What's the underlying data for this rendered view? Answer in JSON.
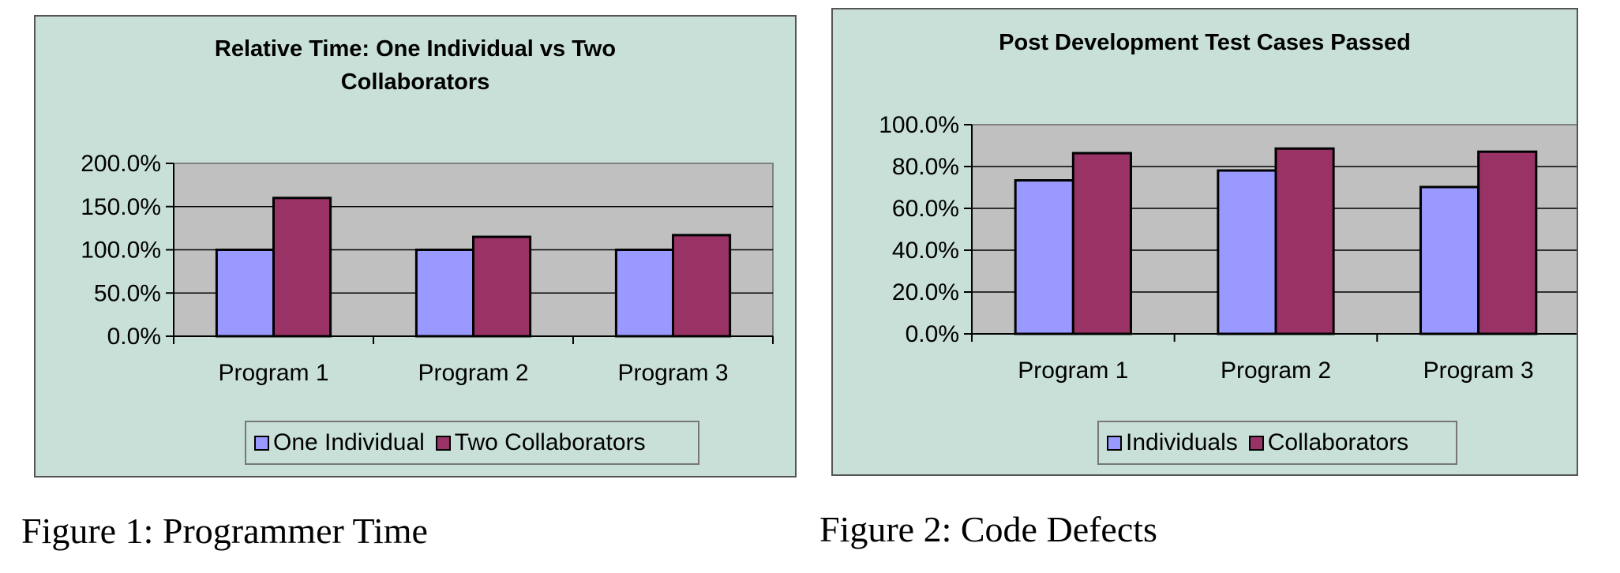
{
  "chart_data": [
    {
      "type": "bar",
      "title": "Relative Time:  One Individual vs Two Collaborators",
      "title_lines": [
        "Relative Time:  One Individual vs Two",
        "Collaborators"
      ],
      "categories": [
        "Program 1",
        "Program 2",
        "Program 3"
      ],
      "series": [
        {
          "name": "One Individual",
          "values": [
            100,
            100,
            100
          ],
          "color": "#9999ff"
        },
        {
          "name": "Two Collaborators",
          "values": [
            160,
            115,
            117
          ],
          "color": "#993366"
        }
      ],
      "y_ticks": [
        "0.0%",
        "50.0%",
        "100.0%",
        "150.0%",
        "200.0%"
      ],
      "ylim": [
        0,
        200
      ],
      "y_unit": "%",
      "grid": true,
      "legend_position": "bottom",
      "plot_bg": "#c0c0c0",
      "chart_bg": "#c8e0d8"
    },
    {
      "type": "bar",
      "title": "Post Development Test Cases Passed",
      "title_lines": [
        "Post Development Test Cases Passed"
      ],
      "categories": [
        "Program 1",
        "Program 2",
        "Program 3"
      ],
      "series": [
        {
          "name": "Individuals",
          "values": [
            73.4,
            78.1,
            70.2
          ],
          "color": "#9999ff"
        },
        {
          "name": "Collaborators",
          "values": [
            86.4,
            88.6,
            87.1
          ],
          "color": "#993366"
        }
      ],
      "y_ticks": [
        "0.0%",
        "20.0%",
        "40.0%",
        "60.0%",
        "80.0%",
        "100.0%"
      ],
      "ylim": [
        0,
        100
      ],
      "y_unit": "%",
      "grid": true,
      "legend_position": "bottom",
      "plot_bg": "#c0c0c0",
      "chart_bg": "#c8e0d8"
    }
  ],
  "captions": {
    "figure1": "Figure 1: Programmer Time",
    "figure2": "Figure 2: Code Defects"
  }
}
